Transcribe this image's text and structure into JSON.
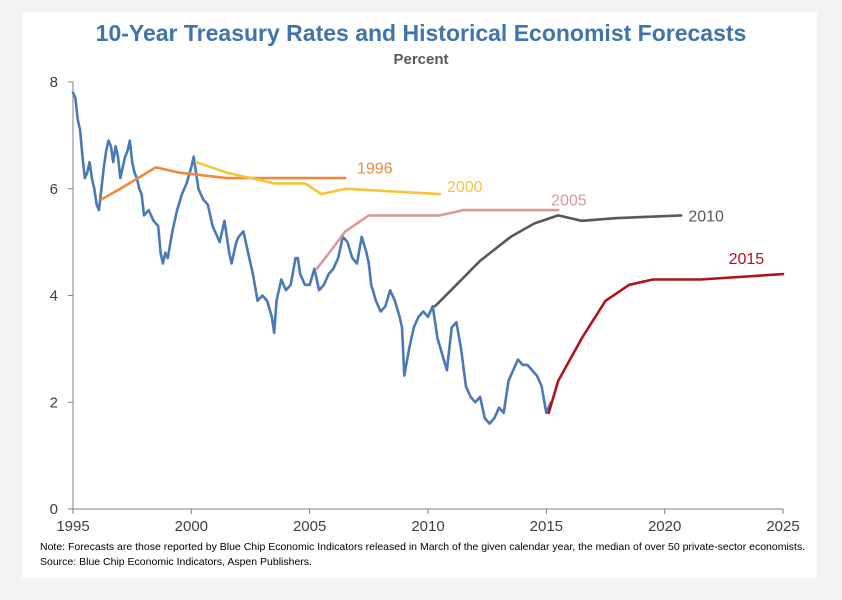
{
  "colors": {
    "actual": "#4a7ab5",
    "f1996": "#ee8a3c",
    "f2000": "#f5c63b",
    "f2005": "#d99a9a",
    "f2010": "#595959",
    "f2015": "#b0141b",
    "axis": "#808080",
    "title": "#3f74ad"
  },
  "note": "Note: Forecasts are those reported by Blue Chip Economic Indicators released in March of the given calendar year, the median of over 50 private-sector economists. Source: Blue Chip Economic Indicators, Aspen Publishers.",
  "chart_data": {
    "type": "line",
    "title": "10-Year Treasury Rates and Historical Economist Forecasts",
    "subtitle": "Percent",
    "xlabel": "",
    "ylabel": "",
    "xlim": [
      1995,
      2025
    ],
    "ylim": [
      0,
      8
    ],
    "x_ticks": [
      1995,
      2000,
      2005,
      2010,
      2015,
      2020,
      2025
    ],
    "y_ticks": [
      0,
      2,
      4,
      6,
      8
    ],
    "grid": false,
    "legend": "inline-labels",
    "series": [
      {
        "key": "actual",
        "x": [
          1995.0,
          1995.1,
          1995.2,
          1995.3,
          1995.4,
          1995.5,
          1995.6,
          1995.7,
          1995.8,
          1995.9,
          1996.0,
          1996.1,
          1996.2,
          1996.3,
          1996.4,
          1996.5,
          1996.6,
          1996.7,
          1996.8,
          1996.9,
          1997.0,
          1997.1,
          1997.2,
          1997.3,
          1997.4,
          1997.5,
          1997.6,
          1997.7,
          1997.8,
          1997.9,
          1998.0,
          1998.2,
          1998.4,
          1998.6,
          1998.7,
          1998.8,
          1998.9,
          1999.0,
          1999.2,
          1999.4,
          1999.6,
          1999.8,
          2000.0,
          2000.1,
          2000.2,
          2000.3,
          2000.5,
          2000.7,
          2000.9,
          2001.0,
          2001.2,
          2001.3,
          2001.4,
          2001.6,
          2001.7,
          2001.8,
          2001.9,
          2002.0,
          2002.2,
          2002.4,
          2002.6,
          2002.8,
          2003.0,
          2003.2,
          2003.4,
          2003.5,
          2003.6,
          2003.8,
          2004.0,
          2004.2,
          2004.4,
          2004.5,
          2004.6,
          2004.8,
          2005.0,
          2005.2,
          2005.4,
          2005.6,
          2005.8,
          2006.0,
          2006.2,
          2006.4,
          2006.6,
          2006.8,
          2007.0,
          2007.2,
          2007.4,
          2007.5,
          2007.6,
          2007.8,
          2008.0,
          2008.2,
          2008.4,
          2008.6,
          2008.8,
          2008.9,
          2009.0,
          2009.2,
          2009.4,
          2009.6,
          2009.8,
          2010.0,
          2010.2,
          2010.4,
          2010.6,
          2010.8,
          2011.0,
          2011.2,
          2011.4,
          2011.6,
          2011.8,
          2012.0,
          2012.2,
          2012.4,
          2012.6,
          2012.8,
          2013.0,
          2013.2,
          2013.4,
          2013.6,
          2013.8,
          2014.0,
          2014.2,
          2014.4,
          2014.6,
          2014.8,
          2015.0,
          2015.2
        ],
        "y": [
          7.8,
          7.7,
          7.3,
          7.1,
          6.6,
          6.2,
          6.3,
          6.5,
          6.2,
          6.0,
          5.7,
          5.6,
          6.0,
          6.4,
          6.7,
          6.9,
          6.8,
          6.5,
          6.8,
          6.6,
          6.2,
          6.4,
          6.6,
          6.7,
          6.9,
          6.5,
          6.3,
          6.2,
          6.0,
          5.9,
          5.5,
          5.6,
          5.4,
          5.3,
          4.8,
          4.6,
          4.8,
          4.7,
          5.2,
          5.6,
          5.9,
          6.1,
          6.4,
          6.6,
          6.3,
          6.0,
          5.8,
          5.7,
          5.3,
          5.2,
          5.0,
          5.2,
          5.4,
          4.8,
          4.6,
          4.8,
          5.0,
          5.1,
          5.2,
          4.8,
          4.4,
          3.9,
          4.0,
          3.9,
          3.6,
          3.3,
          3.9,
          4.3,
          4.1,
          4.2,
          4.7,
          4.7,
          4.4,
          4.2,
          4.2,
          4.5,
          4.1,
          4.2,
          4.4,
          4.5,
          4.7,
          5.1,
          5.0,
          4.7,
          4.6,
          5.1,
          4.8,
          4.6,
          4.2,
          3.9,
          3.7,
          3.8,
          4.1,
          3.9,
          3.6,
          3.4,
          2.5,
          3.0,
          3.4,
          3.6,
          3.7,
          3.6,
          3.8,
          3.2,
          2.9,
          2.6,
          3.4,
          3.5,
          3.0,
          2.3,
          2.1,
          2.0,
          2.1,
          1.7,
          1.6,
          1.7,
          1.9,
          1.8,
          2.4,
          2.6,
          2.8,
          2.7,
          2.7,
          2.6,
          2.5,
          2.3,
          1.8,
          2.0
        ]
      },
      {
        "key": "f1996",
        "name": "1996",
        "x": [
          1996.2,
          1997.0,
          1998.5,
          1999.5,
          2001.5,
          2004.0,
          2006.5
        ],
        "y": [
          5.8,
          6.0,
          6.4,
          6.3,
          6.2,
          6.2,
          6.2
        ]
      },
      {
        "key": "f2000",
        "name": "2000",
        "x": [
          2000.2,
          2001.5,
          2003.5,
          2004.8,
          2005.5,
          2006.5,
          2008.5,
          2010.5
        ],
        "y": [
          6.5,
          6.3,
          6.1,
          6.1,
          5.9,
          6.0,
          5.95,
          5.9
        ]
      },
      {
        "key": "f2005",
        "name": "2005",
        "x": [
          2005.3,
          2006.0,
          2006.5,
          2007.5,
          2009.5,
          2010.5,
          2011.5,
          2015.5
        ],
        "y": [
          4.5,
          4.9,
          5.2,
          5.5,
          5.5,
          5.5,
          5.6,
          5.6
        ]
      },
      {
        "key": "f2010",
        "name": "2010",
        "x": [
          2010.3,
          2011.2,
          2012.2,
          2013.5,
          2014.5,
          2015.5,
          2016.5,
          2018.0,
          2020.7
        ],
        "y": [
          3.8,
          4.2,
          4.65,
          5.1,
          5.35,
          5.5,
          5.4,
          5.45,
          5.5
        ]
      },
      {
        "key": "f2015",
        "name": "2015",
        "x": [
          2015.1,
          2015.5,
          2016.5,
          2017.5,
          2018.5,
          2019.5,
          2021.5,
          2025.0
        ],
        "y": [
          1.8,
          2.4,
          3.2,
          3.9,
          4.2,
          4.3,
          4.3,
          4.4
        ]
      }
    ],
    "labels": [
      {
        "key": "f1996",
        "text": "1996",
        "x": 2007.0,
        "y": 6.4
      },
      {
        "key": "f2000",
        "text": "2000",
        "x": 2010.8,
        "y": 6.05
      },
      {
        "key": "f2005",
        "text": "2005",
        "x": 2015.2,
        "y": 5.8
      },
      {
        "key": "f2010",
        "text": "2010",
        "x": 2021.0,
        "y": 5.5
      },
      {
        "key": "f2015",
        "text": "2015",
        "x": 2022.7,
        "y": 4.7
      }
    ]
  }
}
